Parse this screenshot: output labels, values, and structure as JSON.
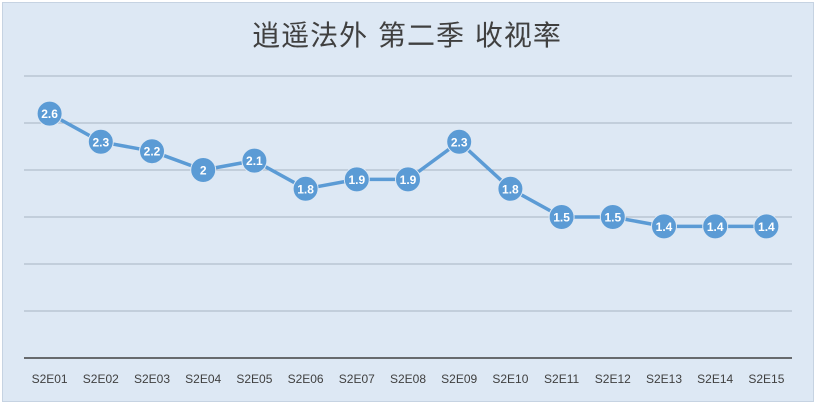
{
  "chart_data": {
    "type": "line",
    "title": "逍遥法外 第二季 收视率",
    "xlabel": "",
    "ylabel": "",
    "categories": [
      "S2E01",
      "S2E02",
      "S2E03",
      "S2E04",
      "S2E05",
      "S2E06",
      "S2E07",
      "S2E08",
      "S2E09",
      "S2E10",
      "S2E11",
      "S2E12",
      "S2E13",
      "S2E14",
      "S2E15"
    ],
    "series": [
      {
        "values": [
          2.6,
          2.3,
          2.2,
          2,
          2.1,
          1.8,
          1.9,
          1.9,
          2.3,
          1.8,
          1.5,
          1.5,
          1.4,
          1.4,
          1.4
        ]
      }
    ],
    "ylim": [
      0,
      3
    ],
    "y_gridlines": [
      0.5,
      1,
      1.5,
      2,
      2.5,
      3
    ],
    "y_tick_labels_shown": false,
    "grid": true,
    "legend": "none",
    "colors": {
      "background": "#dde8f4",
      "line": "#5b9bd5",
      "marker": "#5b9bd5",
      "gridline": "#a6b3c2",
      "axis": "#404040"
    }
  }
}
